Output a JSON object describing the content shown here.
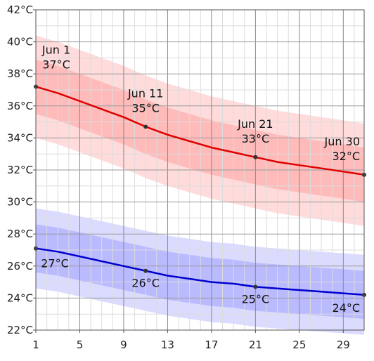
{
  "chart_data": {
    "type": "line",
    "title": "",
    "xlabel": "",
    "ylabel": "",
    "xlim": [
      1,
      30.9
    ],
    "ylim": [
      22,
      42
    ],
    "x_ticks": [
      1,
      5,
      9,
      13,
      17,
      21,
      25,
      29
    ],
    "x_tick_labels": [
      "1",
      "5",
      "9",
      "13",
      "17",
      "21",
      "25",
      "29"
    ],
    "y_ticks": [
      22,
      24,
      26,
      28,
      30,
      32,
      34,
      36,
      38,
      40,
      42
    ],
    "y_tick_labels": [
      "22°C",
      "24°C",
      "26°C",
      "28°C",
      "30°C",
      "32°C",
      "34°C",
      "36°C",
      "38°C",
      "40°C",
      "42°C"
    ],
    "grid": true,
    "x": [
      1,
      3,
      5,
      7,
      9,
      11,
      13,
      15,
      17,
      19,
      21,
      23,
      25,
      27,
      29,
      30.9
    ],
    "series": [
      {
        "color": "#dd0000",
        "band_color": "#ff9999",
        "values": [
          37.2,
          36.8,
          36.3,
          35.8,
          35.3,
          34.7,
          34.2,
          33.8,
          33.4,
          33.1,
          32.8,
          32.5,
          32.3,
          32.1,
          31.9,
          31.7
        ],
        "inner_low": [
          35.5,
          35.1,
          34.6,
          34.1,
          33.6,
          33.0,
          32.5,
          32.1,
          31.7,
          31.4,
          31.1,
          30.8,
          30.6,
          30.4,
          30.2,
          30.0
        ],
        "inner_high": [
          38.9,
          38.5,
          38.0,
          37.5,
          37.0,
          36.4,
          35.9,
          35.5,
          35.1,
          34.8,
          34.5,
          34.2,
          34.0,
          33.8,
          33.6,
          33.4
        ],
        "outer_low": [
          34.0,
          33.6,
          33.1,
          32.6,
          32.1,
          31.5,
          31.0,
          30.6,
          30.2,
          29.9,
          29.6,
          29.3,
          29.1,
          28.9,
          28.7,
          28.5
        ],
        "outer_high": [
          40.4,
          40.0,
          39.5,
          39.0,
          38.5,
          37.9,
          37.4,
          37.0,
          36.6,
          36.3,
          36.0,
          35.7,
          35.5,
          35.3,
          35.1,
          34.9
        ]
      },
      {
        "color": "#0000cc",
        "band_color": "#9999ff",
        "values": [
          27.1,
          26.9,
          26.6,
          26.3,
          26.0,
          25.7,
          25.4,
          25.2,
          25.0,
          24.9,
          24.7,
          24.6,
          24.5,
          24.4,
          24.3,
          24.2
        ],
        "inner_low": [
          25.6,
          25.4,
          25.1,
          24.8,
          24.5,
          24.2,
          23.9,
          23.7,
          23.5,
          23.4,
          23.2,
          23.1,
          23.0,
          22.9,
          22.8,
          22.7
        ],
        "inner_high": [
          28.6,
          28.4,
          28.1,
          27.8,
          27.5,
          27.2,
          26.9,
          26.7,
          26.5,
          26.4,
          26.2,
          26.1,
          26.0,
          25.9,
          25.8,
          25.7
        ],
        "outer_low": [
          24.6,
          24.4,
          24.1,
          23.8,
          23.5,
          23.2,
          22.9,
          22.7,
          22.5,
          22.4,
          22.2,
          22.1,
          22.0,
          21.9,
          21.8,
          21.7
        ],
        "outer_high": [
          29.6,
          29.4,
          29.1,
          28.8,
          28.5,
          28.2,
          27.9,
          27.7,
          27.5,
          27.4,
          27.2,
          27.1,
          27.0,
          26.9,
          26.8,
          26.7
        ]
      }
    ],
    "annotations": [
      {
        "series": 0,
        "x": 1,
        "y": 37.2,
        "date": "Jun 1",
        "value": "37°C"
      },
      {
        "series": 0,
        "x": 11,
        "y": 34.7,
        "date": "Jun 11",
        "value": "35°C"
      },
      {
        "series": 0,
        "x": 21,
        "y": 32.8,
        "date": "Jun 21",
        "value": "33°C"
      },
      {
        "series": 0,
        "x": 30.9,
        "y": 31.7,
        "date": "Jun 30",
        "value": "32°C"
      },
      {
        "series": 1,
        "x": 1,
        "y": 27.1,
        "value": "27°C"
      },
      {
        "series": 1,
        "x": 11,
        "y": 25.7,
        "value": "26°C"
      },
      {
        "series": 1,
        "x": 21,
        "y": 24.7,
        "value": "25°C"
      },
      {
        "series": 1,
        "x": 30.9,
        "y": 24.2,
        "value": "24°C"
      }
    ]
  }
}
